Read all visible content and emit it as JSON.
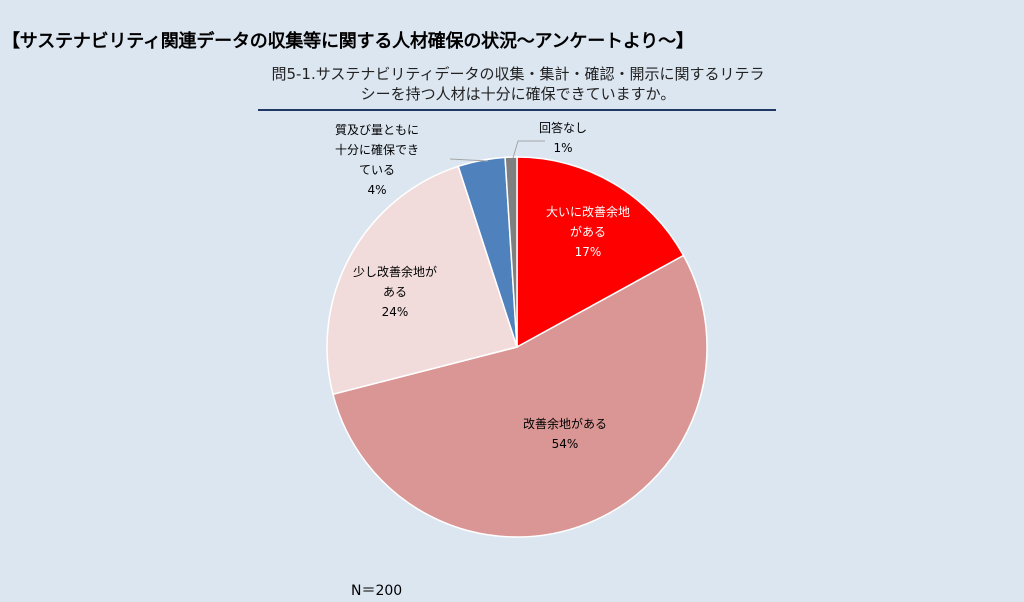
{
  "page": {
    "title": "【サステナビリティ関連データの収集等に関する人材確保の状況～アンケートより～】",
    "question_line1": "問5-1.サステナビリティデータの収集・集計・確認・開示に関するリテラ",
    "question_line2": "シーを持つ人材は十分に確保できていますか。",
    "sample_size": "N＝200"
  },
  "chart_data": {
    "type": "pie",
    "title": "問5-1.サステナビリティデータの収集・集計・確認・開示に関するリテラシーを持つ人材は十分に確保できていますか。",
    "start": "top",
    "direction": "clockwise",
    "slices": [
      {
        "label_lines": [
          "大いに改善余地",
          "がある"
        ],
        "value": 17,
        "value_label": "17%",
        "color": "#ff0000",
        "label_color": "#ffffff"
      },
      {
        "label_lines": [
          "改善余地がある"
        ],
        "value": 54,
        "value_label": "54%",
        "color": "#da9694",
        "label_color": "#000000"
      },
      {
        "label_lines": [
          "少し改善余地が",
          "ある"
        ],
        "value": 24,
        "value_label": "24%",
        "color": "#f2dcdb",
        "label_color": "#000000"
      },
      {
        "label_lines": [
          "質及び量ともに",
          "十分に確保でき",
          "ている"
        ],
        "value": 4,
        "value_label": "4%",
        "color": "#4f81bd",
        "label_color": "#000000",
        "label_outside": true
      },
      {
        "label_lines": [
          "回答なし"
        ],
        "value": 1,
        "value_label": "1%",
        "color": "#7f7f7f",
        "label_color": "#000000",
        "label_outside": true
      }
    ]
  }
}
